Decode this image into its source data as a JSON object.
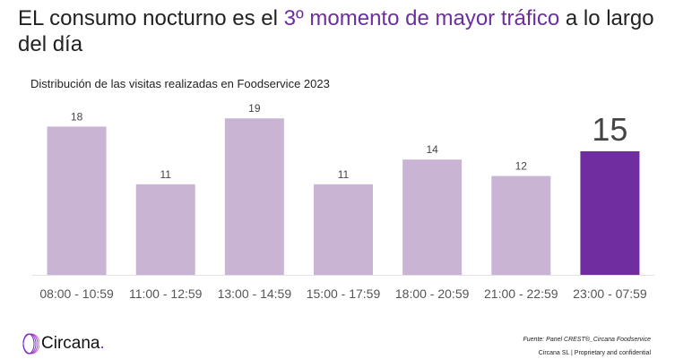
{
  "title": {
    "part1": "EL consumo nocturno es el ",
    "highlight": "3º momento de mayor tráfico",
    "part2": " a lo largo del día"
  },
  "subtitle": "Distribución de las visitas realizadas en Foodservice 2023",
  "colors": {
    "bar": "#c9b5d3",
    "highlight_bar": "#6f2da0",
    "highlight_text": "#6b2fa0"
  },
  "chart_data": {
    "type": "bar",
    "title": "Distribución de las visitas realizadas en Foodservice 2023",
    "categories": [
      "08:00 - 10:59",
      "11:00 - 12:59",
      "13:00 - 14:59",
      "15:00 - 17:59",
      "18:00 - 20:59",
      "21:00 - 22:59",
      "23:00 - 07:59"
    ],
    "values": [
      18,
      11,
      19,
      11,
      14,
      12,
      15
    ],
    "highlight_index": 6,
    "ylim": [
      0,
      20
    ],
    "grid": false,
    "xlabel": "",
    "ylabel": ""
  },
  "footer": {
    "logo": "Circana",
    "source": "Fuente: Panel CREST®_Circana Foodservice",
    "confidential": "Circana SL |  Proprietary and confidential"
  }
}
